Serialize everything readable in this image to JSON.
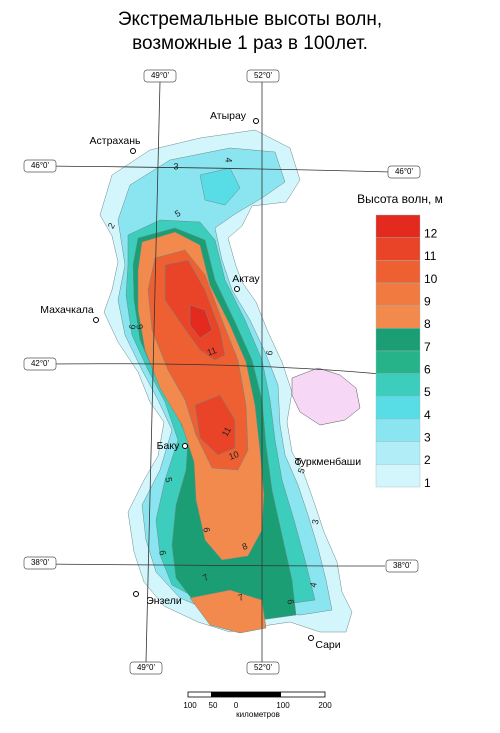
{
  "title": [
    "Экстремальные высоты волн,",
    "возможные 1 раз в 100лет."
  ],
  "legend": {
    "title": "Высота волн, м",
    "items": [
      {
        "label": "12",
        "color": "#e4291f"
      },
      {
        "label": "11",
        "color": "#ea4428"
      },
      {
        "label": "10",
        "color": "#ee5f32"
      },
      {
        "label": "9",
        "color": "#f07a40"
      },
      {
        "label": "8",
        "color": "#f18a4c"
      },
      {
        "label": "7",
        "color": "#1c9e74"
      },
      {
        "label": "6",
        "color": "#27b389"
      },
      {
        "label": "5",
        "color": "#3ccdbd"
      },
      {
        "label": "4",
        "color": "#58dce6"
      },
      {
        "label": "3",
        "color": "#8ae5f0"
      },
      {
        "label": "2",
        "color": "#b0edf6"
      },
      {
        "label": "1",
        "color": "#d2f6fb"
      }
    ]
  },
  "graticule": {
    "top": [
      "49°0'",
      "52°0'"
    ],
    "bottom": [
      "49°0'",
      "52°0'"
    ],
    "left": [
      "46°0'",
      "42°0'",
      "38°0'"
    ],
    "right": [
      "46°0'",
      "38°0'"
    ]
  },
  "cities": [
    "Атырау",
    "Астрахань",
    "Актау",
    "Махачкала",
    "Баку",
    "Туркменбаши",
    "Энзели",
    "Сари"
  ],
  "contour_labels": [
    "4",
    "3",
    "5",
    "2",
    "6",
    "9",
    "11",
    "11",
    "10",
    "6",
    "5",
    "6",
    "8",
    "3",
    "5",
    "6",
    "7",
    "7",
    "6",
    "4"
  ],
  "scale": {
    "ticks": [
      "100",
      "50",
      "0",
      "100",
      "200"
    ],
    "unit": "километров"
  }
}
